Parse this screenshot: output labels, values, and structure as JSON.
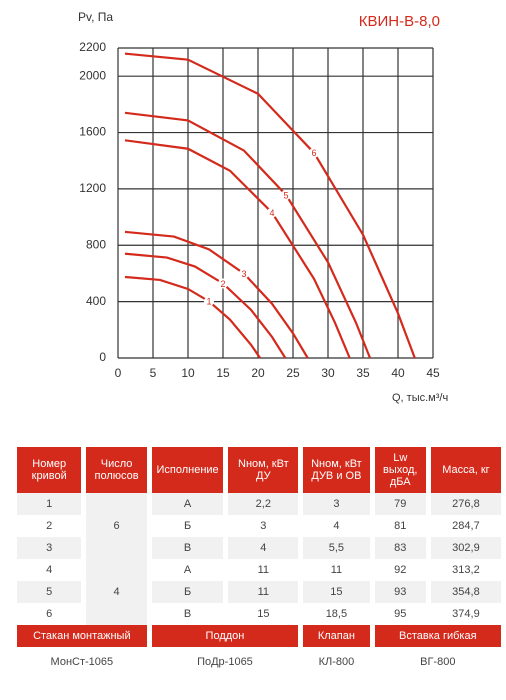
{
  "chart_data": {
    "type": "line",
    "title": "КВИН-В-8,0",
    "y_label": "Pv, Па",
    "x_label": "Q, тыс.м³/ч",
    "xlim": [
      0,
      45
    ],
    "xticks": [
      0,
      5,
      10,
      15,
      20,
      25,
      30,
      35,
      40,
      45
    ],
    "ylim": [
      0,
      2200
    ],
    "yticks": [
      0,
      400,
      800,
      1200,
      1600,
      2000,
      2200
    ],
    "grid": true,
    "series": [
      {
        "name": "1",
        "color": "#d42a1c",
        "x": [
          1,
          6,
          10,
          13,
          16,
          19,
          20.3
        ],
        "values": [
          575,
          554,
          490,
          402,
          272,
          94,
          0
        ]
      },
      {
        "name": "2",
        "color": "#d42a1c",
        "x": [
          1,
          7,
          11,
          15,
          19,
          22,
          23.9
        ],
        "values": [
          740,
          713,
          649,
          529,
          342,
          150,
          0
        ]
      },
      {
        "name": "3",
        "color": "#d42a1c",
        "x": [
          1,
          8,
          13,
          18,
          22,
          25,
          27.1
        ],
        "values": [
          895,
          862,
          771,
          599,
          385,
          175,
          0
        ]
      },
      {
        "name": "4",
        "color": "#d42a1c",
        "x": [
          1,
          10,
          16,
          22,
          28,
          31,
          33.1
        ],
        "values": [
          1545,
          1485,
          1329,
          1032,
          562,
          250,
          0
        ]
      },
      {
        "name": "5",
        "color": "#d42a1c",
        "x": [
          1,
          10,
          18,
          24,
          30,
          34,
          36
        ],
        "values": [
          1740,
          1686,
          1472,
          1157,
          679,
          250,
          0
        ]
      },
      {
        "name": "6",
        "color": "#d42a1c",
        "x": [
          1,
          10,
          20,
          28,
          35,
          40,
          42.4
        ],
        "values": [
          2160,
          2117,
          1875,
          1456,
          875,
          317,
          0
        ]
      }
    ]
  },
  "table": {
    "header": [
      "Номер кривой",
      "Число полюсов",
      "Исполнение",
      "Nном, кВт ДУ",
      "Nном, кВт ДУВ и ОВ",
      "Lw выход, дБА",
      "Масса, кг"
    ],
    "poles": [
      "6",
      "4"
    ],
    "rows": [
      [
        "1",
        "А",
        "2,2",
        "3",
        "79",
        "276,8"
      ],
      [
        "2",
        "Б",
        "3",
        "4",
        "81",
        "284,7"
      ],
      [
        "3",
        "В",
        "4",
        "5,5",
        "83",
        "302,9"
      ],
      [
        "4",
        "А",
        "11",
        "11",
        "92",
        "313,2"
      ],
      [
        "5",
        "Б",
        "11",
        "15",
        "93",
        "354,8"
      ],
      [
        "6",
        "В",
        "15",
        "18,5",
        "95",
        "374,9"
      ]
    ]
  },
  "accessories": {
    "header": [
      "Стакан монтажный",
      "Поддон",
      "Клапан",
      "Вставка гибкая"
    ],
    "values": [
      "МонСт-1065",
      "ПоДр-1065",
      "КЛ-800",
      "ВГ-800"
    ]
  }
}
